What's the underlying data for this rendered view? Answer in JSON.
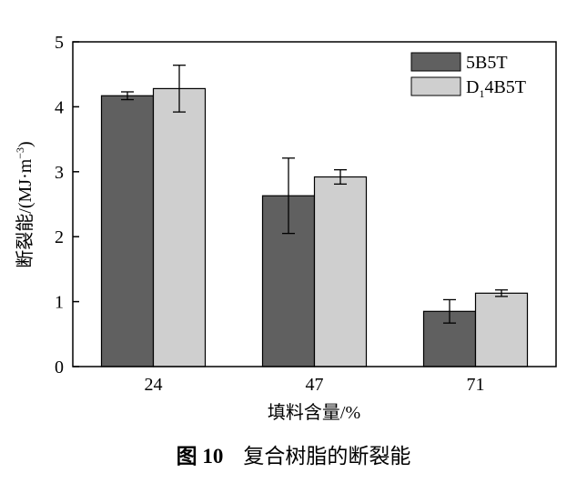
{
  "chart_data": {
    "type": "bar",
    "categories": [
      "24",
      "47",
      "71"
    ],
    "series": [
      {
        "name": "5B5T",
        "values": [
          4.17,
          2.63,
          0.85
        ],
        "errors": [
          0.06,
          0.58,
          0.18
        ],
        "color": "#606060"
      },
      {
        "name": "D1 4B5T",
        "values": [
          4.28,
          2.92,
          1.13
        ],
        "errors": [
          0.36,
          0.11,
          0.05
        ],
        "color": "#cfcfcf"
      }
    ],
    "xlabel": "填料含量/%",
    "ylabel": "断裂能/(MJ·m−3)",
    "ylim": [
      0,
      5
    ],
    "yticks": [
      "0",
      "1",
      "2",
      "3",
      "4",
      "5"
    ],
    "legend_position": "top-right",
    "grid": false
  },
  "legend": {
    "item1": "5B5T",
    "item2_main": "D",
    "item2_sub": "1",
    "item2_rest": "4B5T"
  },
  "axis_titles": {
    "x": "填料含量/%",
    "y_main": "断裂能/(MJ·m",
    "y_sup": "−3",
    "y_end": ")"
  },
  "caption": {
    "number": "图 10",
    "text": "复合树脂的断裂能"
  }
}
